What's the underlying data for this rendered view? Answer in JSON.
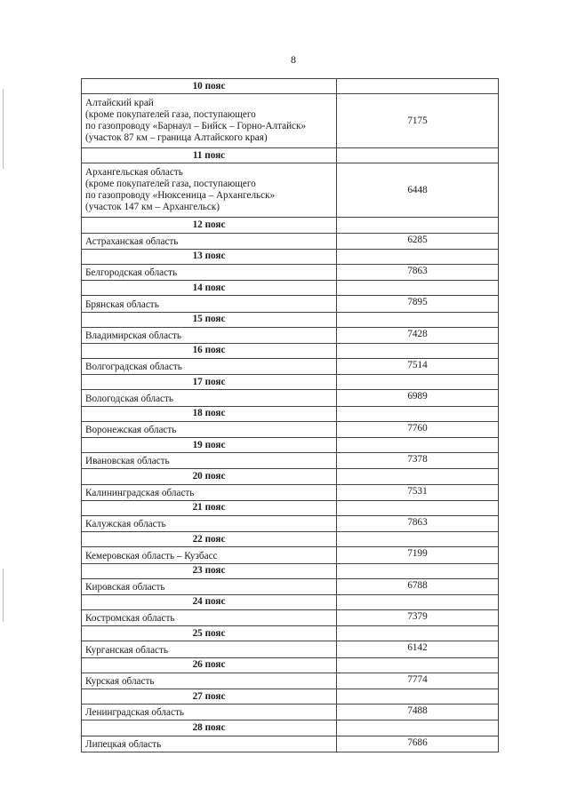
{
  "page_number": "8",
  "rows": [
    {
      "zone": "10 пояс",
      "region_lines": [
        "Алтайский край",
        "(кроме покупателей газа, поступающего",
        "по газопроводу «Барнаул – Бийск – Горно-Алтайск»",
        "(участок 87 км – граница Алтайского края)"
      ],
      "value": "7175"
    },
    {
      "zone": "11 пояс",
      "region_lines": [
        "Архангельская область",
        "(кроме покупателей газа, поступающего",
        "по газопроводу «Нюксеница – Архангельск»",
        "(участок 147 км – Архангельск)"
      ],
      "value": "6448"
    },
    {
      "zone": "12 пояс",
      "region_lines": [
        "Астраханская область"
      ],
      "value": "6285"
    },
    {
      "zone": "13 пояс",
      "region_lines": [
        "Белгородская область"
      ],
      "value": "7863"
    },
    {
      "zone": "14 пояс",
      "region_lines": [
        "Брянская область"
      ],
      "value": "7895"
    },
    {
      "zone": "15 пояс",
      "region_lines": [
        "Владимирская область"
      ],
      "value": "7428"
    },
    {
      "zone": "16 пояс",
      "region_lines": [
        "Волгоградская область"
      ],
      "value": "7514"
    },
    {
      "zone": "17 пояс",
      "region_lines": [
        "Вологодская область"
      ],
      "value": "6989"
    },
    {
      "zone": "18 пояс",
      "region_lines": [
        "Воронежская область"
      ],
      "value": "7760"
    },
    {
      "zone": "19 пояс",
      "region_lines": [
        "Ивановская область"
      ],
      "value": "7378"
    },
    {
      "zone": "20 пояс",
      "region_lines": [
        "Калининградская область"
      ],
      "value": "7531"
    },
    {
      "zone": "21 пояс",
      "region_lines": [
        "Калужская область"
      ],
      "value": "7863"
    },
    {
      "zone": "22 пояс",
      "region_lines": [
        "Кемеровская область – Кузбасс"
      ],
      "value": "7199"
    },
    {
      "zone": "23 пояс",
      "region_lines": [
        "Кировская область"
      ],
      "value": "6788"
    },
    {
      "zone": "24 пояс",
      "region_lines": [
        "Костромская область"
      ],
      "value": "7379"
    },
    {
      "zone": "25 пояс",
      "region_lines": [
        "Курганская область"
      ],
      "value": "6142"
    },
    {
      "zone": "26 пояс",
      "region_lines": [
        "Курская область"
      ],
      "value": "7774"
    },
    {
      "zone": "27 пояс",
      "region_lines": [
        "Ленинградская область"
      ],
      "value": "7488"
    },
    {
      "zone": "28 пояс",
      "region_lines": [
        "Липецкая область"
      ],
      "value": "7686"
    }
  ]
}
